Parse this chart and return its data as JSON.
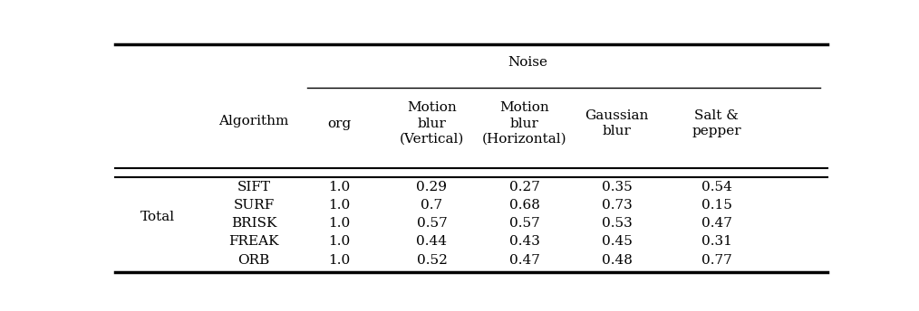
{
  "noise_header": "Noise",
  "col_headers": [
    "Algorithm",
    "org",
    "Motion\nblur\n(Vertical)",
    "Motion\nblur\n(Horizontal)",
    "Gaussian\nblur",
    "Salt &\npepper"
  ],
  "row_group_label": "Total",
  "algorithms": [
    "SIFT",
    "SURF",
    "BRISK",
    "FREAK",
    "ORB"
  ],
  "data": [
    [
      1.0,
      0.29,
      0.27,
      0.35,
      0.54
    ],
    [
      1.0,
      0.7,
      0.68,
      0.73,
      0.15
    ],
    [
      1.0,
      0.57,
      0.57,
      0.53,
      0.47
    ],
    [
      1.0,
      0.44,
      0.43,
      0.45,
      0.31
    ],
    [
      1.0,
      0.52,
      0.47,
      0.48,
      0.77
    ]
  ],
  "bg_color": "#ffffff",
  "text_color": "#000000",
  "font_size": 11
}
